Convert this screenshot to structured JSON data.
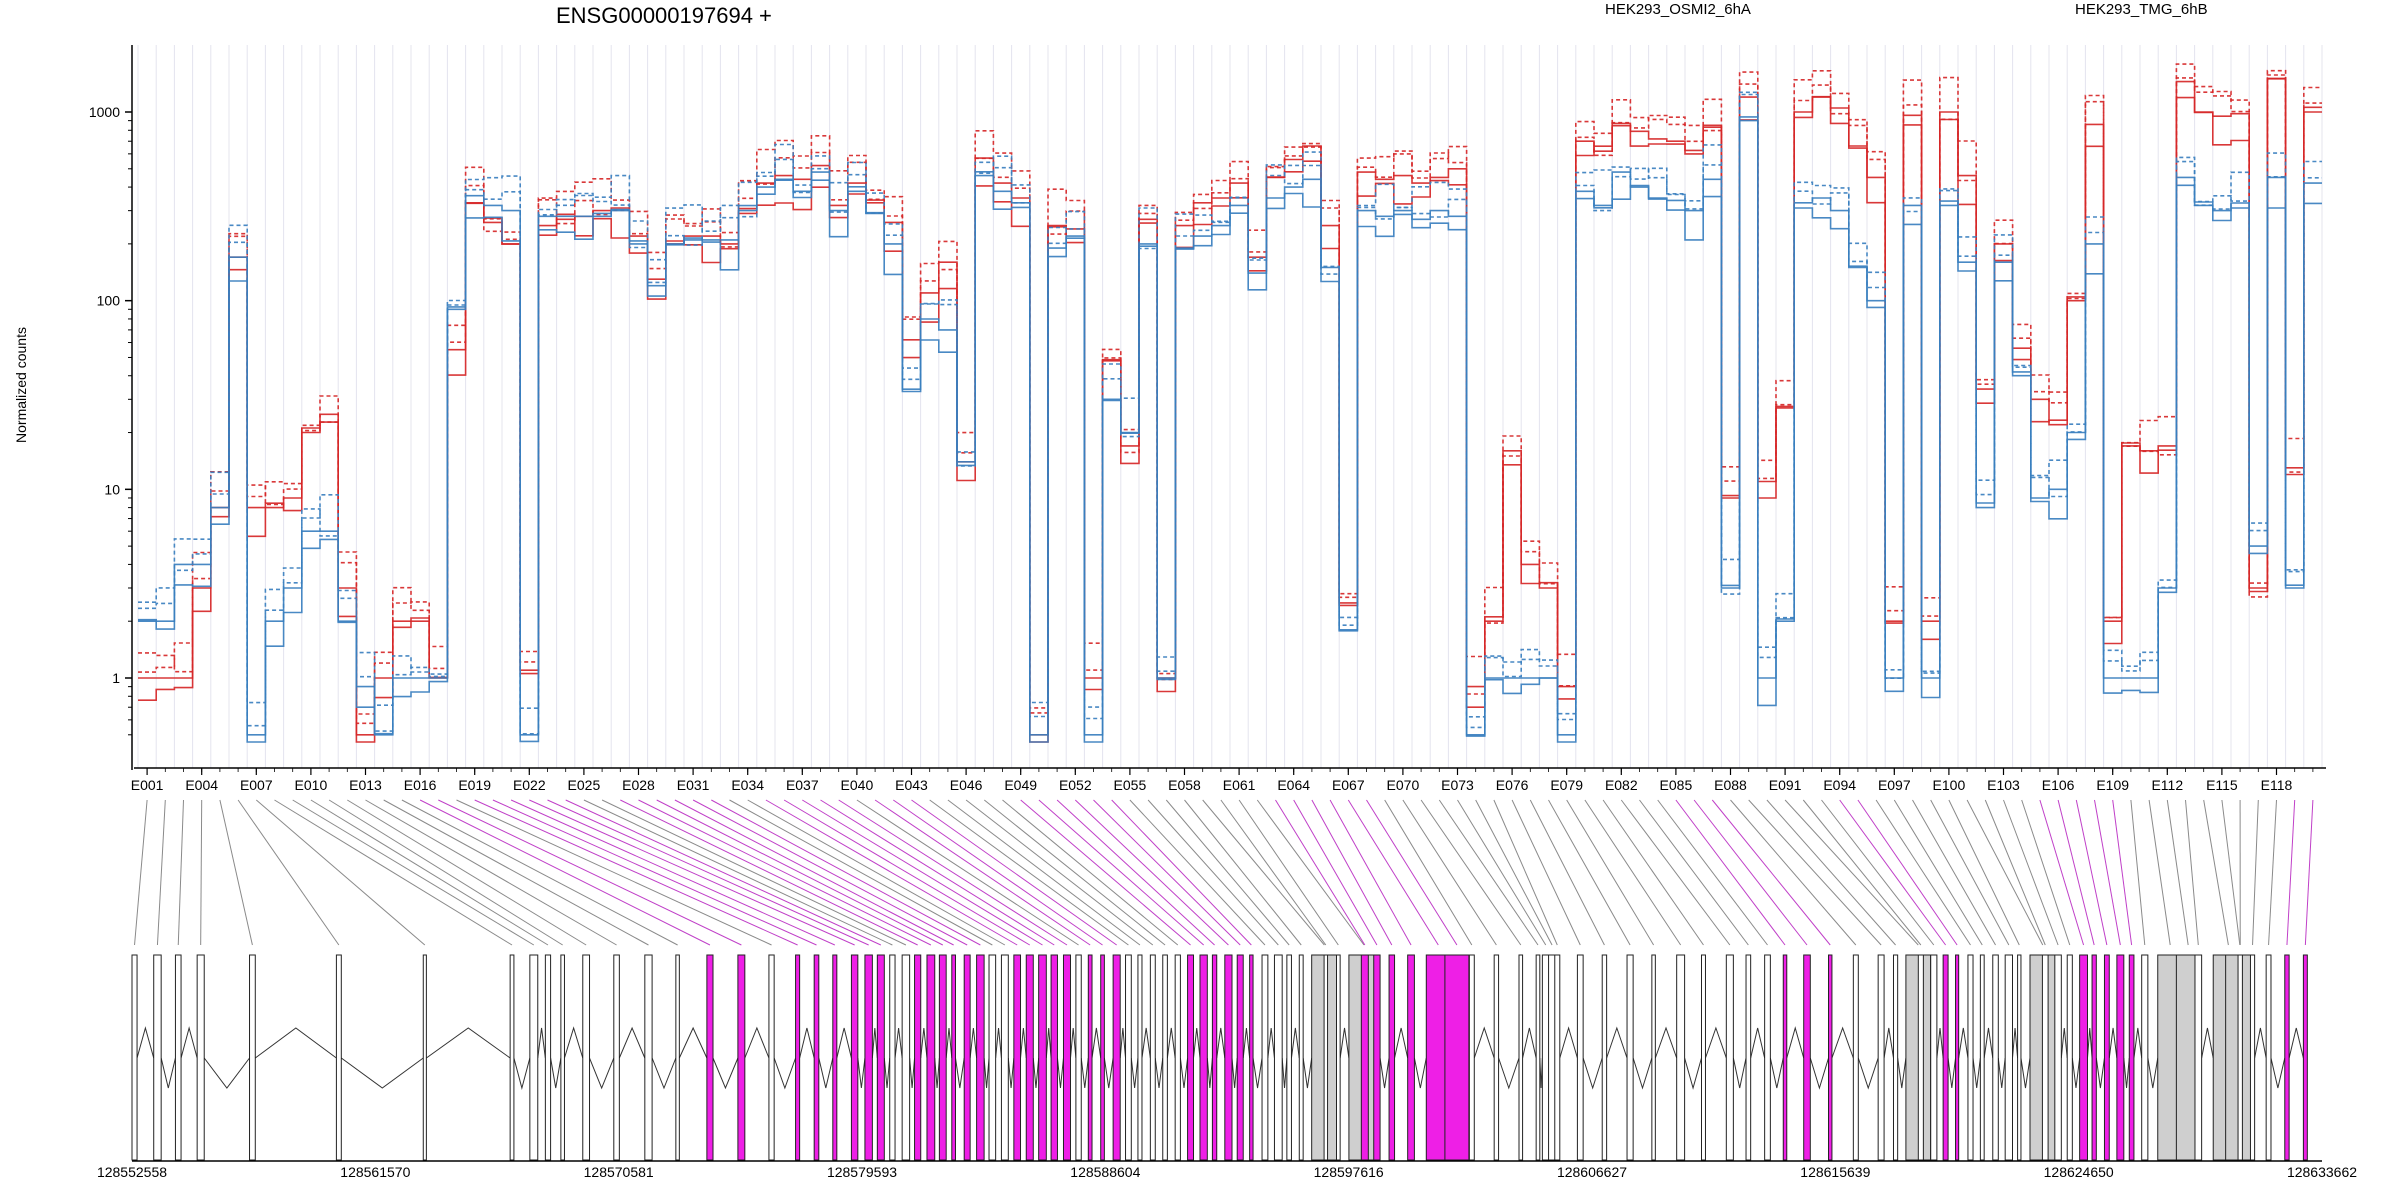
{
  "chart_data": {
    "type": "line",
    "title": "ENSG00000197694 +",
    "ylabel": "Normalized counts",
    "yscale": "log",
    "ylim": [
      0.45,
      2000
    ],
    "y_ticks": [
      1,
      10,
      100,
      1000
    ],
    "y_tick_labels": [
      "1",
      "10",
      "100",
      "1000"
    ],
    "legend": [
      {
        "name": "HEK293_OSMI2_6hA",
        "color": "#d62728",
        "position": "top-center"
      },
      {
        "name": "HEK293_TMG_6hB",
        "color": "#3a7fbf",
        "position": "top-right"
      }
    ],
    "exon_labels_shown": [
      "E001",
      "E004",
      "E007",
      "E010",
      "E013",
      "E016",
      "E019",
      "E022",
      "E025",
      "E028",
      "E031",
      "E034",
      "E037",
      "E040",
      "E043",
      "E046",
      "E049",
      "E052",
      "E055",
      "E058",
      "E061",
      "E064",
      "E067",
      "E070",
      "E073",
      "E076",
      "E079",
      "E082",
      "E085",
      "E088",
      "E091",
      "E094",
      "E097",
      "E100",
      "E103",
      "E106",
      "E109",
      "E112",
      "E115",
      "E118"
    ],
    "exon_count": 120,
    "genomic_axis_labels": [
      "128552558",
      "128561570",
      "128570581",
      "128579593",
      "128588604",
      "128597616",
      "128606627",
      "128615639",
      "128624650",
      "128633662"
    ],
    "genomic_range": [
      128552558,
      128633662
    ],
    "series": [
      {
        "name": "HEK293_OSMI2_6hA",
        "color": "#d62728",
        "profile": [
          1,
          1,
          1,
          3,
          8,
          16,
          170,
          8,
          8,
          9,
          16,
          20,
          25,
          3,
          0.5,
          1,
          2,
          2,
          2,
          1,
          55,
          95,
          330,
          260,
          200,
          1.1,
          250,
          280,
          270,
          280,
          300,
          310,
          290,
          220,
          130,
          200,
          220,
          220,
          0.9,
          200,
          290,
          420,
          460,
          560,
          440,
          520,
          320,
          420,
          440,
          330,
          260,
          62,
          110,
          160,
          48,
          14,
          570,
          420,
          350,
          250,
          0.5,
          250,
          240,
          1,
          48,
          26,
          17,
          270,
          1,
          250,
          300,
          330,
          350,
          420,
          170,
          450,
          480,
          560,
          660,
          250,
          2.5,
          620,
          480,
          440,
          460,
          420,
          450,
          650,
          500,
          0.9,
          2,
          16,
          4,
          4,
          3,
          0.9,
          700,
          770,
          620,
          870,
          790,
          720,
          700,
          680,
          600,
          850,
          9,
          1200,
          30,
          11,
          27,
          1000,
          1200,
          1050,
          800,
          660,
          450,
          2,
          960,
          1050,
          2,
          1000,
          460,
          34,
          200,
          260,
          56,
          30,
          22,
          100,
          200,
          860,
          2,
          17,
          16,
          17,
          2,
          1450,
          1000,
          950,
          980,
          850,
          3,
          1500,
          13,
          1000,
          1600
        ]
      },
      {
        "name": "HEK293_TMG_6hB",
        "color": "#3a7fbf",
        "profile": [
          2,
          2,
          4,
          4,
          8,
          10,
          170,
          0.5,
          2,
          3,
          5,
          6,
          6,
          2,
          0.9,
          0.5,
          1,
          1,
          1,
          1,
          90,
          110,
          360,
          320,
          300,
          0.5,
          280,
          300,
          280,
          280,
          290,
          300,
          280,
          200,
          120,
          200,
          210,
          210,
          0.5,
          210,
          300,
          400,
          440,
          480,
          380,
          480,
          300,
          380,
          360,
          290,
          200,
          33,
          80,
          70,
          24,
          14,
          460,
          380,
          330,
          200,
          0.5,
          190,
          220,
          0.5,
          30,
          20,
          20,
          200,
          1,
          190,
          200,
          220,
          250,
          320,
          140,
          350,
          350,
          400,
          440,
          150,
          1.8,
          460,
          300,
          280,
          300,
          270,
          300,
          320,
          280,
          0.5,
          1,
          1,
          1,
          1,
          1,
          0.5,
          380,
          400,
          320,
          480,
          400,
          350,
          340,
          330,
          300,
          440,
          3,
          900,
          2,
          1,
          2,
          330,
          350,
          300,
          230,
          150,
          100,
          1,
          320,
          350,
          1,
          320,
          160,
          8,
          160,
          170,
          40,
          9,
          10,
          20,
          60,
          200,
          1,
          1,
          1,
          3,
          1,
          450,
          320,
          300,
          310,
          300,
          5,
          450,
          3,
          420,
          430
        ]
      }
    ]
  }
}
